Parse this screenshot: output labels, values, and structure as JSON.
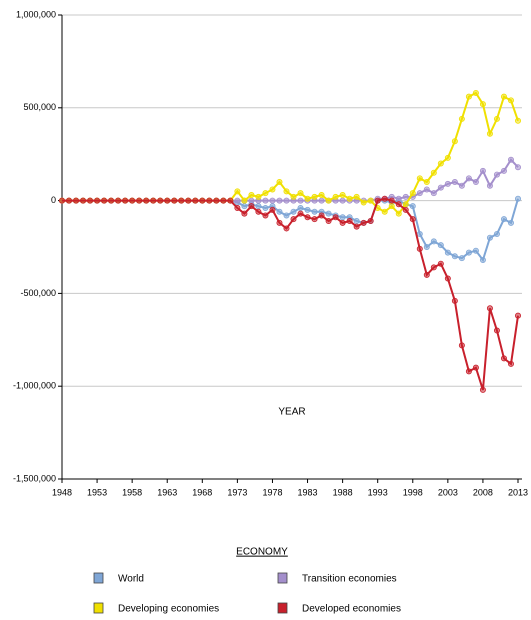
{
  "chart_data": {
    "type": "line",
    "x_label": "YEAR",
    "legend_title": "ECONOMY",
    "x": [
      1948,
      1949,
      1950,
      1951,
      1952,
      1953,
      1954,
      1955,
      1956,
      1957,
      1958,
      1959,
      1960,
      1961,
      1962,
      1963,
      1964,
      1965,
      1966,
      1967,
      1968,
      1969,
      1970,
      1971,
      1972,
      1973,
      1974,
      1975,
      1976,
      1977,
      1978,
      1979,
      1980,
      1981,
      1982,
      1983,
      1984,
      1985,
      1986,
      1987,
      1988,
      1989,
      1990,
      1991,
      1992,
      1993,
      1994,
      1995,
      1996,
      1997,
      1998,
      1999,
      2000,
      2001,
      2002,
      2003,
      2004,
      2005,
      2006,
      2007,
      2008,
      2009,
      2010,
      2011,
      2012,
      2013
    ],
    "xlim": [
      1948,
      2013
    ],
    "xticks": [
      1948,
      1953,
      1958,
      1963,
      1968,
      1973,
      1978,
      1983,
      1988,
      1993,
      1998,
      2003,
      2008,
      2013
    ],
    "ylim": [
      -1500000,
      1000000
    ],
    "yticks": [
      {
        "value": -1500000,
        "label": "-1,500,000"
      },
      {
        "value": -1000000,
        "label": "-1,000,000"
      },
      {
        "value": -500000,
        "label": "-500,000"
      },
      0,
      {
        "value": 500000,
        "label": "500,000"
      },
      {
        "value": 1000000,
        "label": "1,000,000"
      }
    ],
    "grid": true,
    "series": [
      {
        "name": "World",
        "color": "#7fa6d6",
        "values": [
          0,
          0,
          0,
          0,
          0,
          0,
          0,
          0,
          0,
          0,
          0,
          0,
          0,
          0,
          0,
          0,
          0,
          0,
          0,
          0,
          0,
          0,
          0,
          0,
          0,
          -10000,
          -30000,
          -20000,
          -30000,
          -40000,
          -30000,
          -60000,
          -80000,
          -60000,
          -40000,
          -50000,
          -60000,
          -60000,
          -70000,
          -80000,
          -90000,
          -90000,
          -110000,
          -120000,
          -110000,
          0,
          0,
          -10000,
          0,
          -20000,
          -30000,
          -180000,
          -250000,
          -220000,
          -240000,
          -280000,
          -300000,
          -310000,
          -280000,
          -270000,
          -320000,
          -200000,
          -180000,
          -100000,
          -120000,
          10000
        ]
      },
      {
        "name": "Transition economies",
        "color": "#a48fcc",
        "values": [
          0,
          0,
          0,
          0,
          0,
          0,
          0,
          0,
          0,
          0,
          0,
          0,
          0,
          0,
          0,
          0,
          0,
          0,
          0,
          0,
          0,
          0,
          0,
          0,
          0,
          0,
          0,
          0,
          0,
          0,
          0,
          0,
          0,
          0,
          0,
          0,
          0,
          0,
          0,
          0,
          0,
          0,
          0,
          0,
          0,
          10000,
          10000,
          20000,
          10000,
          20000,
          20000,
          40000,
          60000,
          40000,
          70000,
          90000,
          100000,
          80000,
          120000,
          100000,
          160000,
          80000,
          140000,
          160000,
          220000,
          180000
        ]
      },
      {
        "name": "Developing economies",
        "color": "#f0e000",
        "values": [
          0,
          0,
          0,
          0,
          0,
          0,
          0,
          0,
          0,
          0,
          0,
          0,
          0,
          0,
          0,
          0,
          0,
          0,
          0,
          0,
          0,
          0,
          0,
          0,
          0,
          50000,
          0,
          30000,
          20000,
          40000,
          60000,
          100000,
          50000,
          20000,
          40000,
          10000,
          20000,
          30000,
          0,
          20000,
          30000,
          10000,
          20000,
          -10000,
          0,
          -40000,
          -60000,
          -30000,
          -70000,
          -20000,
          40000,
          120000,
          100000,
          150000,
          200000,
          230000,
          320000,
          440000,
          560000,
          580000,
          520000,
          360000,
          440000,
          560000,
          540000,
          430000
        ]
      },
      {
        "name": "Developed economies",
        "color": "#c8202c",
        "values": [
          0,
          0,
          0,
          0,
          0,
          0,
          0,
          0,
          0,
          0,
          0,
          0,
          0,
          0,
          0,
          0,
          0,
          0,
          0,
          0,
          0,
          0,
          0,
          0,
          0,
          -40000,
          -70000,
          -30000,
          -60000,
          -80000,
          -50000,
          -120000,
          -150000,
          -100000,
          -70000,
          -90000,
          -100000,
          -80000,
          -110000,
          -90000,
          -120000,
          -110000,
          -140000,
          -120000,
          -110000,
          0,
          10000,
          0,
          -20000,
          -50000,
          -100000,
          -260000,
          -400000,
          -360000,
          -340000,
          -420000,
          -540000,
          -780000,
          -920000,
          -900000,
          -1020000,
          -580000,
          -700000,
          -850000,
          -880000,
          -620000
        ]
      }
    ]
  }
}
